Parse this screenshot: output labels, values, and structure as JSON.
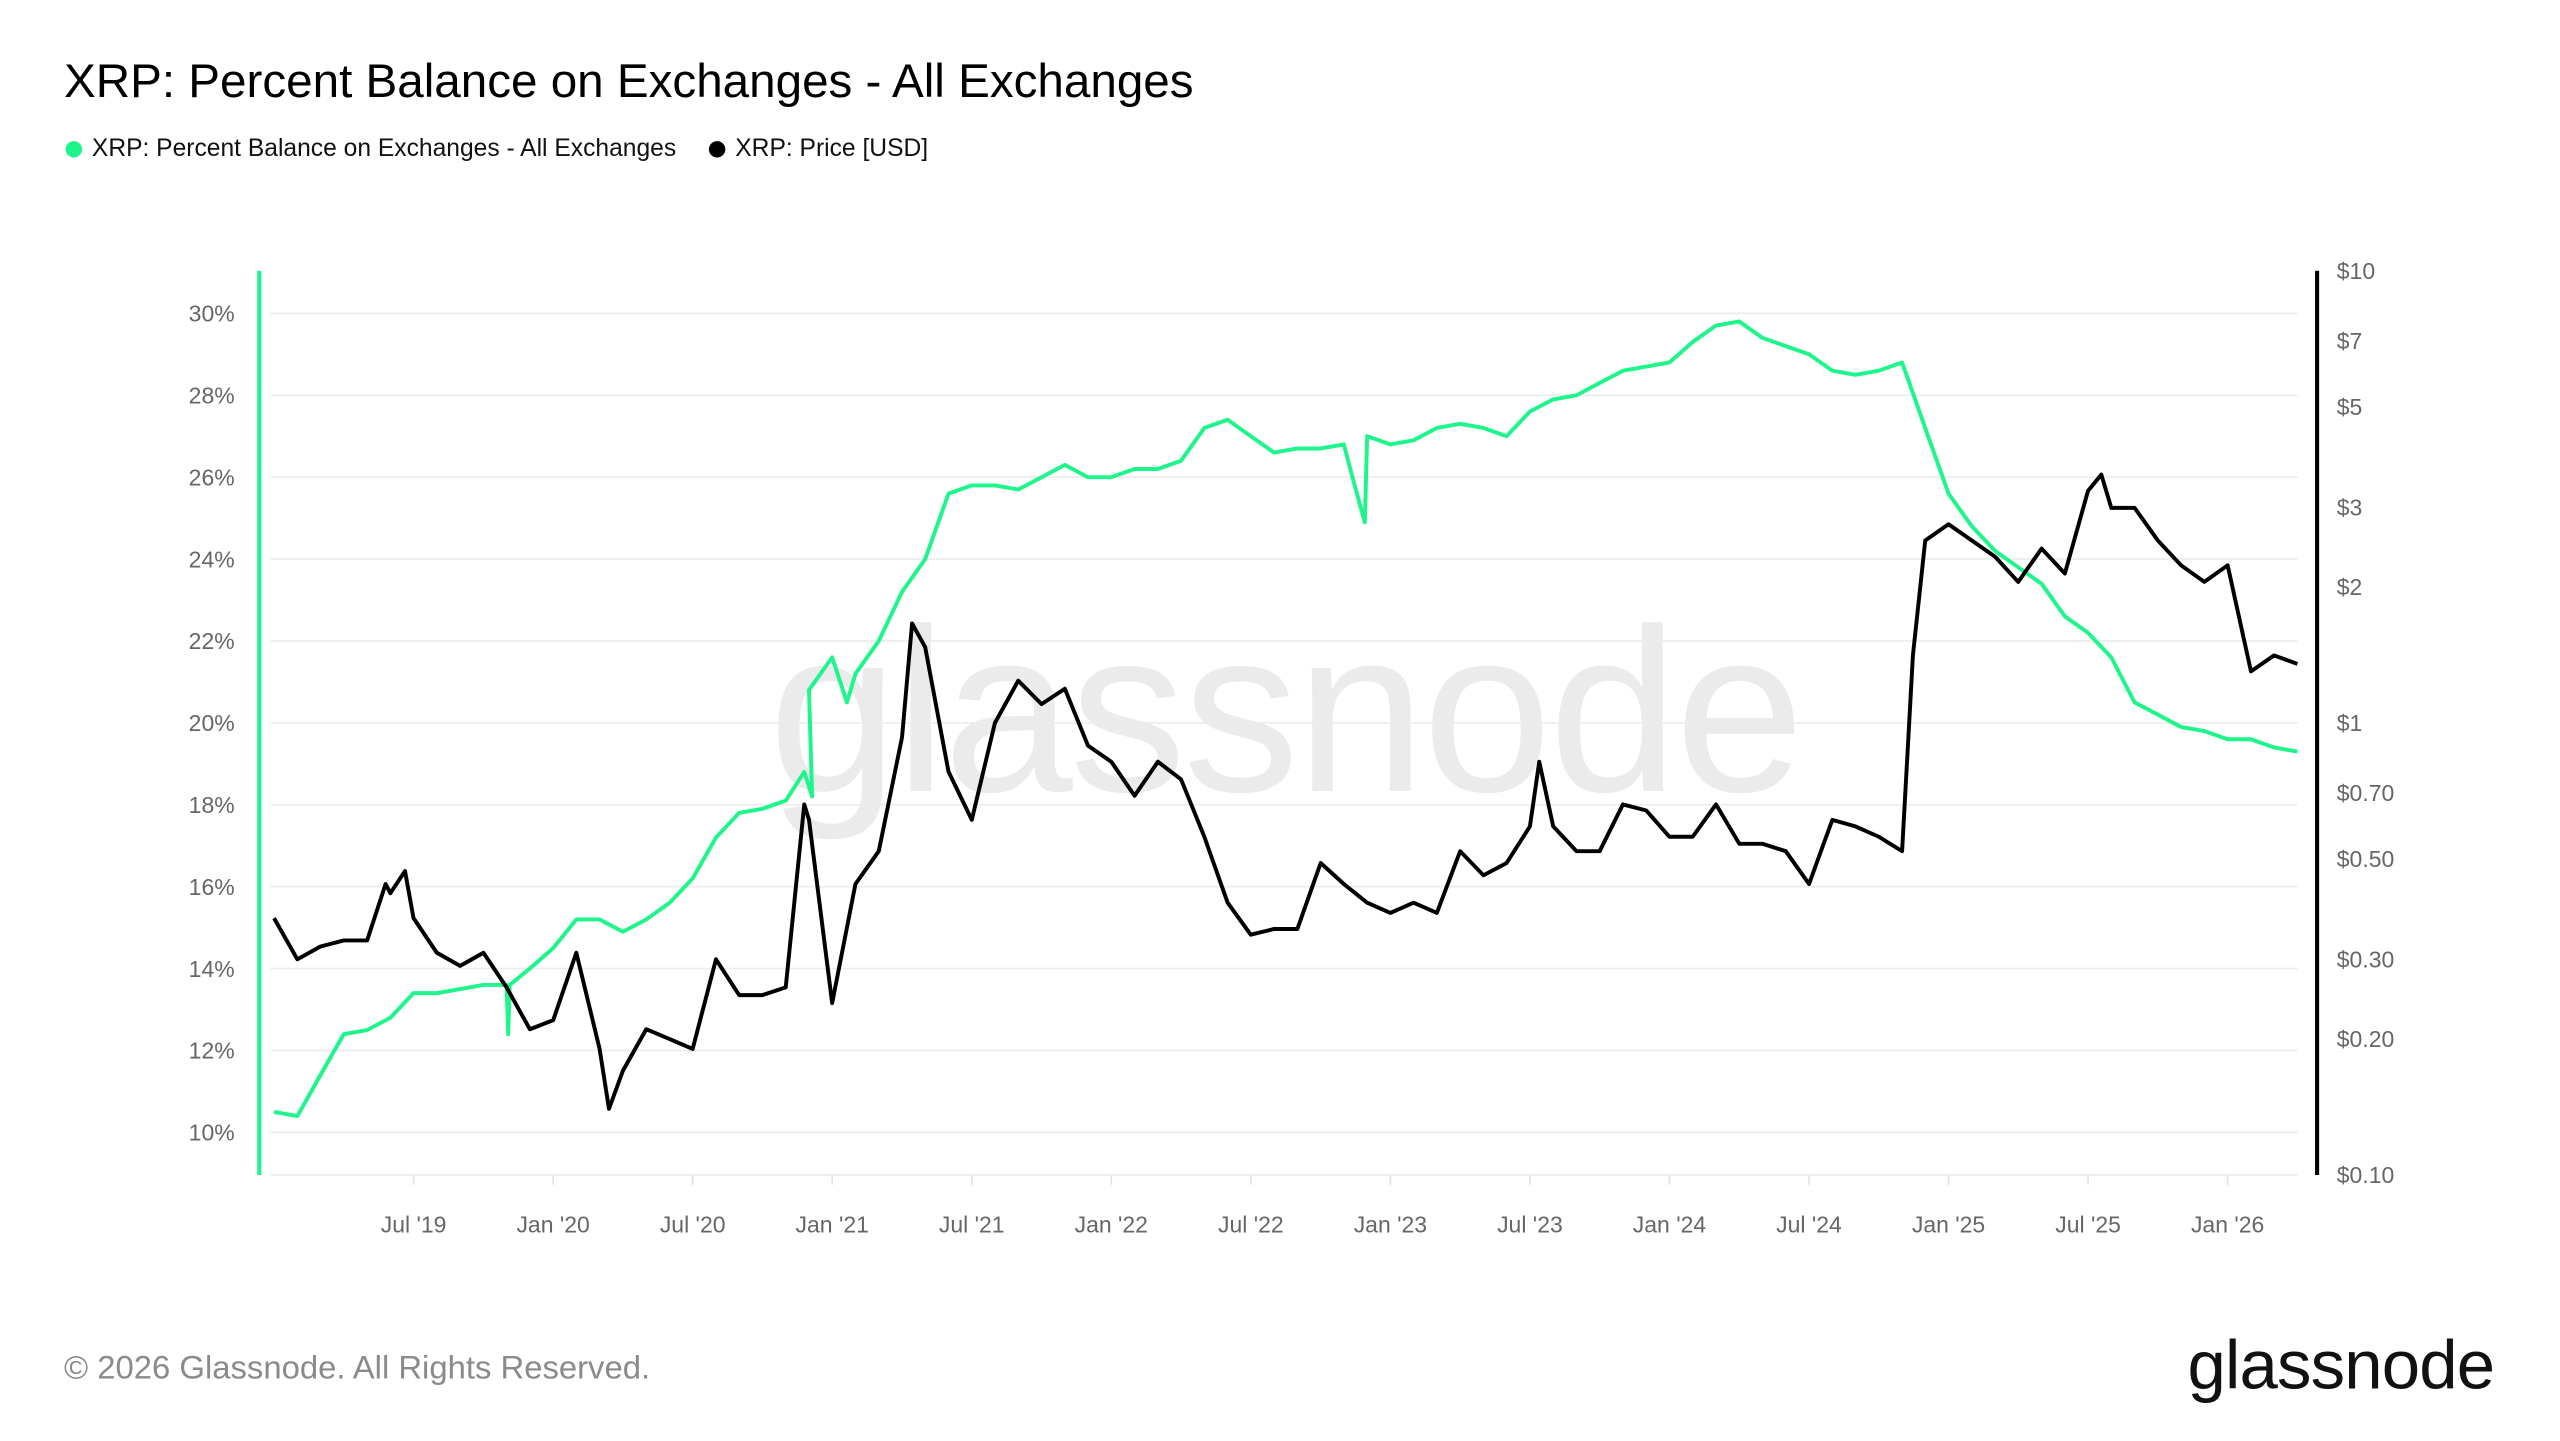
{
  "header": {
    "title": "XRP: Percent Balance on Exchanges - All Exchanges"
  },
  "legend": [
    {
      "label": "XRP: Percent Balance on Exchanges - All Exchanges",
      "color": "#1ef58a"
    },
    {
      "label": "XRP: Price [USD]",
      "color": "#000000"
    }
  ],
  "footer": {
    "copyright": "© 2026 Glassnode. All Rights Reserved.",
    "logo": "glassnode",
    "watermark": "glassnode"
  },
  "chart_data": {
    "type": "line",
    "title": "XRP: Percent Balance on Exchanges - All Exchanges",
    "x_ticks": [
      "Jul '19",
      "Jan '20",
      "Jul '20",
      "Jan '21",
      "Jul '21",
      "Jan '22",
      "Jul '22",
      "Jan '23",
      "Jul '23",
      "Jan '24",
      "Jul '24",
      "Jan '25",
      "Jul '25",
      "Jan '26"
    ],
    "x_tick_dates": [
      "2019-07",
      "2020-01",
      "2020-07",
      "2021-01",
      "2021-07",
      "2022-01",
      "2022-07",
      "2023-01",
      "2023-07",
      "2024-01",
      "2024-07",
      "2025-01",
      "2025-07",
      "2026-01"
    ],
    "xlim": [
      "2019-01",
      "2026-04"
    ],
    "y_left": {
      "ticks": [
        "10%",
        "12%",
        "14%",
        "16%",
        "18%",
        "20%",
        "22%",
        "24%",
        "26%",
        "28%",
        "30%"
      ],
      "tick_values": [
        10,
        12,
        14,
        16,
        18,
        20,
        22,
        24,
        26,
        28,
        30
      ],
      "range": [
        9,
        31
      ],
      "scale": "linear",
      "unit": "%"
    },
    "y_right": {
      "ticks": [
        "$0.10",
        "$0.20",
        "$0.30",
        "$0.50",
        "$0.70",
        "$1",
        "$2",
        "$3",
        "$5",
        "$7",
        "$10"
      ],
      "tick_values": [
        0.1,
        0.2,
        0.3,
        0.5,
        0.7,
        1,
        2,
        3,
        5,
        7,
        10
      ],
      "range": [
        0.1,
        10
      ],
      "scale": "log",
      "unit": "USD"
    },
    "grid": true,
    "legend_position": "top-left",
    "series": [
      {
        "name": "XRP: Percent Balance on Exchanges - All Exchanges",
        "axis": "left",
        "color": "#1ef58a",
        "x": [
          "2019-01",
          "2019-02",
          "2019-03",
          "2019-04",
          "2019-05",
          "2019-06",
          "2019-07",
          "2019-08",
          "2019-09",
          "2019-10",
          "2019-11-01",
          "2019-11-03",
          "2019-11-05",
          "2019-12",
          "2020-01",
          "2020-02",
          "2020-03",
          "2020-04",
          "2020-05",
          "2020-06",
          "2020-07",
          "2020-08",
          "2020-09",
          "2020-10",
          "2020-11",
          "2020-11-25",
          "2020-12-05",
          "2020-12",
          "2021-01",
          "2021-01-20",
          "2021-02",
          "2021-03",
          "2021-04",
          "2021-05",
          "2021-06",
          "2021-07",
          "2021-08",
          "2021-09",
          "2021-10",
          "2021-11",
          "2021-12",
          "2022-01",
          "2022-02",
          "2022-03",
          "2022-04",
          "2022-05",
          "2022-06",
          "2022-07",
          "2022-08",
          "2022-09",
          "2022-10",
          "2022-11",
          "2022-11-15",
          "2022-11-28",
          "2022-12-01",
          "2022-12",
          "2023-01",
          "2023-02",
          "2023-03",
          "2023-04",
          "2023-05",
          "2023-06",
          "2023-07",
          "2023-08",
          "2023-09",
          "2023-10",
          "2023-11",
          "2023-12",
          "2024-01",
          "2024-02",
          "2024-03",
          "2024-04",
          "2024-05",
          "2024-06",
          "2024-07",
          "2024-08",
          "2024-09",
          "2024-10",
          "2024-11",
          "2024-12",
          "2025-01",
          "2025-02",
          "2025-03",
          "2025-04",
          "2025-05",
          "2025-06",
          "2025-07",
          "2025-08",
          "2025-09",
          "2025-10",
          "2025-11",
          "2025-12",
          "2026-01",
          "2026-02",
          "2026-03",
          "2026-04"
        ],
        "values": [
          10.5,
          10.4,
          11.4,
          12.4,
          12.5,
          12.8,
          13.4,
          13.4,
          13.5,
          13.6,
          13.6,
          12.4,
          13.6,
          14.0,
          14.5,
          15.2,
          15.2,
          14.9,
          15.2,
          15.6,
          16.2,
          17.2,
          17.8,
          17.9,
          18.1,
          18.8,
          18.2,
          20.8,
          21.6,
          20.5,
          21.2,
          22.0,
          23.2,
          24.0,
          25.6,
          25.8,
          25.8,
          25.7,
          26.0,
          26.3,
          26.0,
          26.0,
          26.2,
          26.2,
          26.4,
          27.2,
          27.4,
          27.0,
          26.6,
          26.7,
          26.7,
          26.8,
          25.8,
          24.9,
          27.0,
          27.0,
          26.8,
          26.9,
          27.2,
          27.3,
          27.2,
          27.0,
          27.6,
          27.9,
          28.0,
          28.3,
          28.6,
          28.7,
          28.8,
          29.3,
          29.7,
          29.8,
          29.4,
          29.2,
          29.0,
          28.6,
          28.5,
          28.6,
          28.8,
          27.2,
          25.6,
          24.8,
          24.2,
          23.8,
          23.4,
          22.6,
          22.2,
          21.6,
          20.5,
          20.2,
          19.9,
          19.8,
          19.6,
          19.6,
          19.4,
          19.3
        ]
      },
      {
        "name": "XRP: Price [USD]",
        "axis": "right",
        "color": "#000000",
        "x": [
          "2019-01",
          "2019-02",
          "2019-03",
          "2019-04",
          "2019-05",
          "2019-05-25",
          "2019-06",
          "2019-06-20",
          "2019-07",
          "2019-08",
          "2019-09",
          "2019-10",
          "2019-11",
          "2019-12",
          "2020-01",
          "2020-02",
          "2020-03",
          "2020-03-13",
          "2020-04",
          "2020-05",
          "2020-06",
          "2020-07",
          "2020-08",
          "2020-09",
          "2020-10",
          "2020-11",
          "2020-11-25",
          "2020-12",
          "2021-01",
          "2021-02",
          "2021-03",
          "2021-04",
          "2021-04-14",
          "2021-05",
          "2021-06",
          "2021-07",
          "2021-08",
          "2021-09",
          "2021-10",
          "2021-11",
          "2021-12",
          "2022-01",
          "2022-02",
          "2022-03",
          "2022-04",
          "2022-05",
          "2022-06",
          "2022-07",
          "2022-08",
          "2022-09",
          "2022-10",
          "2022-11",
          "2022-12",
          "2023-01",
          "2023-02",
          "2023-03",
          "2023-04",
          "2023-05",
          "2023-06",
          "2023-07",
          "2023-07-13",
          "2023-08",
          "2023-09",
          "2023-10",
          "2023-11",
          "2023-12",
          "2024-01",
          "2024-02",
          "2024-03",
          "2024-04",
          "2024-05",
          "2024-06",
          "2024-07",
          "2024-08",
          "2024-09",
          "2024-10",
          "2024-11",
          "2024-11-15",
          "2024-12",
          "2025-01",
          "2025-02",
          "2025-03",
          "2025-04",
          "2025-05",
          "2025-06",
          "2025-07",
          "2025-07-18",
          "2025-08",
          "2025-09",
          "2025-10",
          "2025-11",
          "2025-12",
          "2026-01",
          "2026-02",
          "2026-03",
          "2026-04"
        ],
        "values": [
          0.37,
          0.3,
          0.32,
          0.33,
          0.33,
          0.44,
          0.42,
          0.47,
          0.37,
          0.31,
          0.29,
          0.31,
          0.26,
          0.21,
          0.22,
          0.31,
          0.19,
          0.14,
          0.17,
          0.21,
          0.2,
          0.19,
          0.3,
          0.25,
          0.25,
          0.26,
          0.66,
          0.61,
          0.24,
          0.44,
          0.52,
          0.93,
          1.66,
          1.47,
          0.78,
          0.61,
          1.0,
          1.24,
          1.1,
          1.19,
          0.89,
          0.82,
          0.69,
          0.82,
          0.75,
          0.56,
          0.4,
          0.34,
          0.35,
          0.35,
          0.49,
          0.44,
          0.4,
          0.38,
          0.4,
          0.38,
          0.52,
          0.46,
          0.49,
          0.59,
          0.82,
          0.59,
          0.52,
          0.52,
          0.66,
          0.64,
          0.56,
          0.56,
          0.66,
          0.54,
          0.54,
          0.52,
          0.44,
          0.61,
          0.59,
          0.56,
          0.52,
          1.41,
          2.53,
          2.75,
          2.53,
          2.33,
          2.05,
          2.43,
          2.14,
          3.26,
          3.54,
          2.99,
          2.99,
          2.53,
          2.23,
          2.05,
          2.23,
          1.3,
          1.41,
          1.35
        ]
      }
    ]
  }
}
